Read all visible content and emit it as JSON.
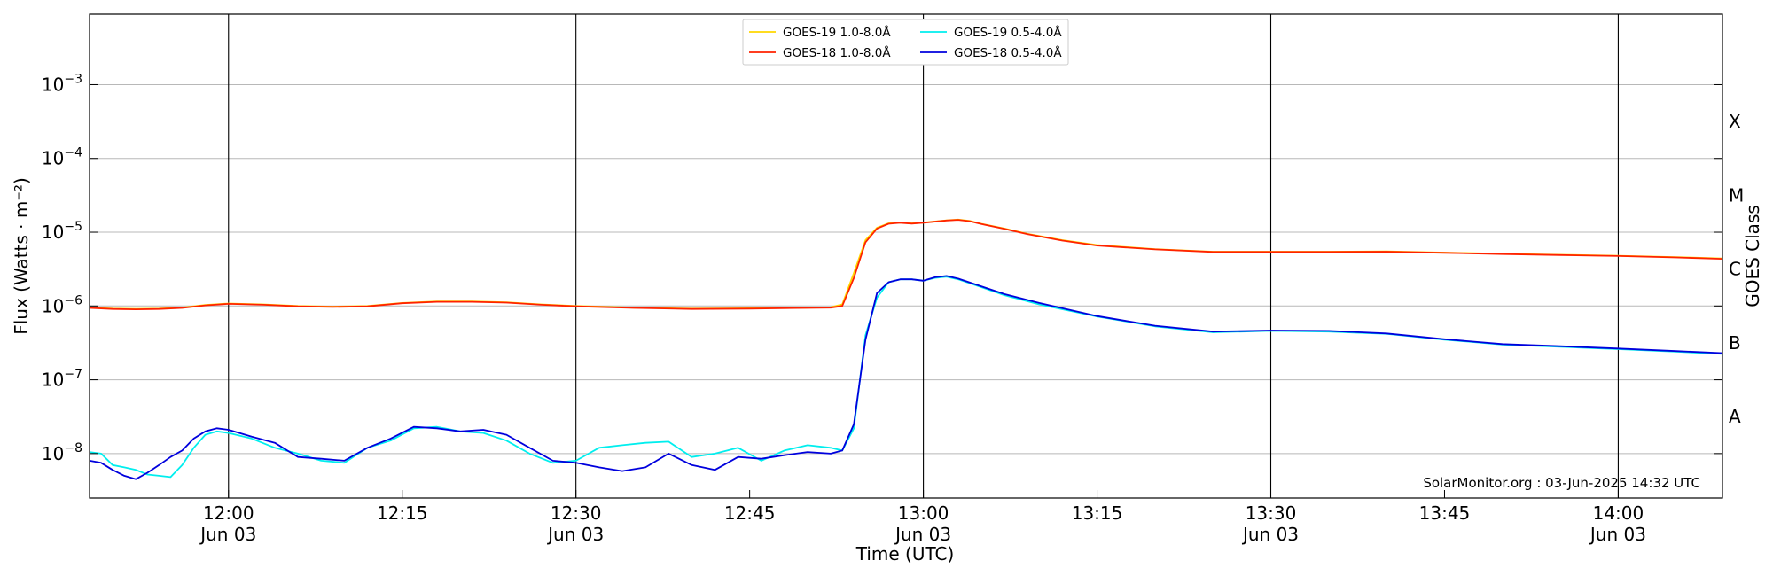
{
  "chart_data": {
    "type": "line",
    "title": "",
    "xlabel": "Time (UTC)",
    "ylabel": "Flux (Watts · m⁻²)",
    "y2label": "GOES Class",
    "yscale": "log",
    "ylim": [
      2.5e-09,
      0.009
    ],
    "xlim": [
      "11:48",
      "14:09"
    ],
    "grid": "horizontal",
    "legend_position": "top-center",
    "credit": "SolarMonitor.org : 03-Jun-2025 14:32 UTC",
    "x_ticks": [
      {
        "time": "12:00",
        "label": "12:00",
        "date": "Jun 03",
        "vline": true
      },
      {
        "time": "12:15",
        "label": "12:15",
        "date": "",
        "vline": false
      },
      {
        "time": "12:30",
        "label": "12:30",
        "date": "Jun 03",
        "vline": true
      },
      {
        "time": "12:45",
        "label": "12:45",
        "date": "",
        "vline": false
      },
      {
        "time": "13:00",
        "label": "13:00",
        "date": "Jun 03",
        "vline": true
      },
      {
        "time": "13:15",
        "label": "13:15",
        "date": "",
        "vline": false
      },
      {
        "time": "13:30",
        "label": "13:30",
        "date": "Jun 03",
        "vline": true
      },
      {
        "time": "13:45",
        "label": "13:45",
        "date": "",
        "vline": false
      },
      {
        "time": "14:00",
        "label": "14:00",
        "date": "Jun 03",
        "vline": true
      }
    ],
    "y_ticks": [
      {
        "value": 1e-08,
        "base": "10",
        "exp": "−8"
      },
      {
        "value": 1e-07,
        "base": "10",
        "exp": "−7"
      },
      {
        "value": 1e-06,
        "base": "10",
        "exp": "−6"
      },
      {
        "value": 1e-05,
        "base": "10",
        "exp": "−5"
      },
      {
        "value": 0.0001,
        "base": "10",
        "exp": "−4"
      },
      {
        "value": 0.001,
        "base": "10",
        "exp": "−3"
      }
    ],
    "goes_classes": [
      {
        "label": "A",
        "value": 3.16e-08
      },
      {
        "label": "B",
        "value": 3.16e-07
      },
      {
        "label": "C",
        "value": 3.16e-06
      },
      {
        "label": "M",
        "value": 3.16e-05
      },
      {
        "label": "X",
        "value": 0.000316
      }
    ],
    "series": [
      {
        "name": "GOES-19 1.0-8.0Å",
        "color": "#FFD700",
        "x": [
          "11:48",
          "11:50",
          "11:52",
          "11:54",
          "11:56",
          "11:58",
          "12:00",
          "12:03",
          "12:06",
          "12:09",
          "12:12",
          "12:15",
          "12:18",
          "12:21",
          "12:24",
          "12:27",
          "12:30",
          "12:35",
          "12:40",
          "12:45",
          "12:50",
          "12:52",
          "12:53",
          "12:54",
          "12:55",
          "12:56",
          "12:57",
          "12:58",
          "12:59",
          "13:00",
          "13:02",
          "13:03",
          "13:04",
          "13:05",
          "13:07",
          "13:09",
          "13:12",
          "13:15",
          "13:20",
          "13:25",
          "13:30",
          "13:35",
          "13:40",
          "13:45",
          "13:50",
          "13:55",
          "14:00",
          "14:05",
          "14:09"
        ],
        "values": [
          9.5e-07,
          9.2e-07,
          9.1e-07,
          9.2e-07,
          9.5e-07,
          1.03e-06,
          1.08e-06,
          1.05e-06,
          1e-06,
          9.8e-07,
          1e-06,
          1.1e-06,
          1.15e-06,
          1.15e-06,
          1.12e-06,
          1.05e-06,
          1e-06,
          9.5e-07,
          9.2e-07,
          9.3e-07,
          9.5e-07,
          9.6e-07,
          1.05e-06,
          2.8e-06,
          7.8e-06,
          1.15e-05,
          1.32e-05,
          1.35e-05,
          1.32e-05,
          1.35e-05,
          1.45e-05,
          1.48e-05,
          1.42e-05,
          1.3e-05,
          1.12e-05,
          9.5e-06,
          7.8e-06,
          6.7e-06,
          5.9e-06,
          5.45e-06,
          5.45e-06,
          5.45e-06,
          5.5e-06,
          5.3e-06,
          5.1e-06,
          4.95e-06,
          4.8e-06,
          4.6e-06,
          4.4e-06
        ]
      },
      {
        "name": "GOES-18 1.0-8.0Å",
        "color": "#FF2200",
        "x": [
          "11:48",
          "11:50",
          "11:52",
          "11:54",
          "11:56",
          "11:58",
          "12:00",
          "12:03",
          "12:06",
          "12:09",
          "12:12",
          "12:15",
          "12:18",
          "12:21",
          "12:24",
          "12:27",
          "12:30",
          "12:35",
          "12:40",
          "12:45",
          "12:50",
          "12:52",
          "12:53",
          "12:54",
          "12:55",
          "12:56",
          "12:57",
          "12:58",
          "12:59",
          "13:00",
          "13:02",
          "13:03",
          "13:04",
          "13:05",
          "13:07",
          "13:09",
          "13:12",
          "13:15",
          "13:20",
          "13:25",
          "13:30",
          "13:35",
          "13:40",
          "13:45",
          "13:50",
          "13:55",
          "14:00",
          "14:05",
          "14:09"
        ],
        "values": [
          9.4e-07,
          9.1e-07,
          9e-07,
          9.1e-07,
          9.4e-07,
          1.02e-06,
          1.07e-06,
          1.04e-06,
          9.9e-07,
          9.7e-07,
          9.9e-07,
          1.09e-06,
          1.14e-06,
          1.14e-06,
          1.11e-06,
          1.04e-06,
          9.9e-07,
          9.4e-07,
          9.1e-07,
          9.2e-07,
          9.4e-07,
          9.5e-07,
          1e-06,
          2.4e-06,
          7.3e-06,
          1.12e-05,
          1.3e-05,
          1.34e-05,
          1.31e-05,
          1.34e-05,
          1.44e-05,
          1.47e-05,
          1.41e-05,
          1.29e-05,
          1.11e-05,
          9.4e-06,
          7.7e-06,
          6.6e-06,
          5.85e-06,
          5.4e-06,
          5.4e-06,
          5.4e-06,
          5.45e-06,
          5.25e-06,
          5.05e-06,
          4.9e-06,
          4.75e-06,
          4.55e-06,
          4.35e-06
        ]
      },
      {
        "name": "GOES-19 0.5-4.0Å",
        "color": "#00EEEE",
        "x": [
          "11:48",
          "11:49",
          "11:50",
          "11:51",
          "11:52",
          "11:53",
          "11:54",
          "11:55",
          "11:56",
          "11:57",
          "11:58",
          "11:59",
          "12:00",
          "12:02",
          "12:04",
          "12:06",
          "12:08",
          "12:10",
          "12:12",
          "12:14",
          "12:16",
          "12:18",
          "12:20",
          "12:22",
          "12:24",
          "12:26",
          "12:28",
          "12:30",
          "12:32",
          "12:34",
          "12:36",
          "12:38",
          "12:40",
          "12:42",
          "12:44",
          "12:46",
          "12:48",
          "12:50",
          "12:52",
          "12:53",
          "12:54",
          "12:55",
          "12:56",
          "12:57",
          "12:58",
          "12:59",
          "13:00",
          "13:01",
          "13:02",
          "13:03",
          "13:05",
          "13:07",
          "13:10",
          "13:15",
          "13:20",
          "13:25",
          "13:30",
          "13:35",
          "13:40",
          "13:45",
          "13:50",
          "13:55",
          "14:00",
          "14:05",
          "14:09"
        ],
        "values": [
          1.05e-08,
          1e-08,
          7e-09,
          6.5e-09,
          6e-09,
          5.2e-09,
          5e-09,
          4.8e-09,
          7e-09,
          1.2e-08,
          1.8e-08,
          2e-08,
          1.9e-08,
          1.6e-08,
          1.2e-08,
          1e-08,
          8e-09,
          7.5e-09,
          1.2e-08,
          1.5e-08,
          2.2e-08,
          2.3e-08,
          2e-08,
          1.9e-08,
          1.5e-08,
          1e-08,
          7.5e-09,
          8e-09,
          1.2e-08,
          1.3e-08,
          1.4e-08,
          1.45e-08,
          9e-09,
          1e-08,
          1.2e-08,
          8e-09,
          1.1e-08,
          1.3e-08,
          1.2e-08,
          1.1e-08,
          2.2e-08,
          4e-07,
          1.3e-06,
          2.1e-06,
          2.3e-06,
          2.3e-06,
          2.2e-06,
          2.4e-06,
          2.5e-06,
          2.3e-06,
          1.8e-06,
          1.4e-06,
          1.05e-06,
          7.2e-07,
          5.3e-07,
          4.4e-07,
          4.6e-07,
          4.5e-07,
          4.2e-07,
          3.5e-07,
          3e-07,
          2.8e-07,
          2.6e-07,
          2.4e-07,
          2.25e-07
        ]
      },
      {
        "name": "GOES-18 0.5-4.0Å",
        "color": "#0000DD",
        "x": [
          "11:48",
          "11:49",
          "11:50",
          "11:51",
          "11:52",
          "11:53",
          "11:54",
          "11:55",
          "11:56",
          "11:57",
          "11:58",
          "11:59",
          "12:00",
          "12:02",
          "12:04",
          "12:06",
          "12:08",
          "12:10",
          "12:12",
          "12:14",
          "12:16",
          "12:18",
          "12:20",
          "12:22",
          "12:24",
          "12:26",
          "12:28",
          "12:30",
          "12:32",
          "12:34",
          "12:36",
          "12:38",
          "12:40",
          "12:42",
          "12:44",
          "12:46",
          "12:48",
          "12:50",
          "12:52",
          "12:53",
          "12:54",
          "12:55",
          "12:56",
          "12:57",
          "12:58",
          "12:59",
          "13:00",
          "13:01",
          "13:02",
          "13:03",
          "13:05",
          "13:07",
          "13:10",
          "13:15",
          "13:20",
          "13:25",
          "13:30",
          "13:35",
          "13:40",
          "13:45",
          "13:50",
          "13:55",
          "14:00",
          "14:05",
          "14:09"
        ],
        "values": [
          8e-09,
          7.5e-09,
          6e-09,
          5e-09,
          4.5e-09,
          5.5e-09,
          7e-09,
          9e-09,
          1.1e-08,
          1.6e-08,
          2e-08,
          2.2e-08,
          2.1e-08,
          1.7e-08,
          1.4e-08,
          9e-09,
          8.5e-09,
          8e-09,
          1.2e-08,
          1.6e-08,
          2.3e-08,
          2.2e-08,
          2e-08,
          2.1e-08,
          1.8e-08,
          1.2e-08,
          8e-09,
          7.5e-09,
          6.5e-09,
          5.8e-09,
          6.5e-09,
          1e-08,
          7e-09,
          6e-09,
          9e-09,
          8.5e-09,
          9.5e-09,
          1.05e-08,
          1e-08,
          1.1e-08,
          2.5e-08,
          3.5e-07,
          1.5e-06,
          2.1e-06,
          2.3e-06,
          2.3e-06,
          2.2e-06,
          2.45e-06,
          2.55e-06,
          2.35e-06,
          1.85e-06,
          1.45e-06,
          1.1e-06,
          7.3e-07,
          5.4e-07,
          4.5e-07,
          4.65e-07,
          4.6e-07,
          4.25e-07,
          3.55e-07,
          3.05e-07,
          2.85e-07,
          2.65e-07,
          2.45e-07,
          2.3e-07
        ]
      }
    ]
  }
}
